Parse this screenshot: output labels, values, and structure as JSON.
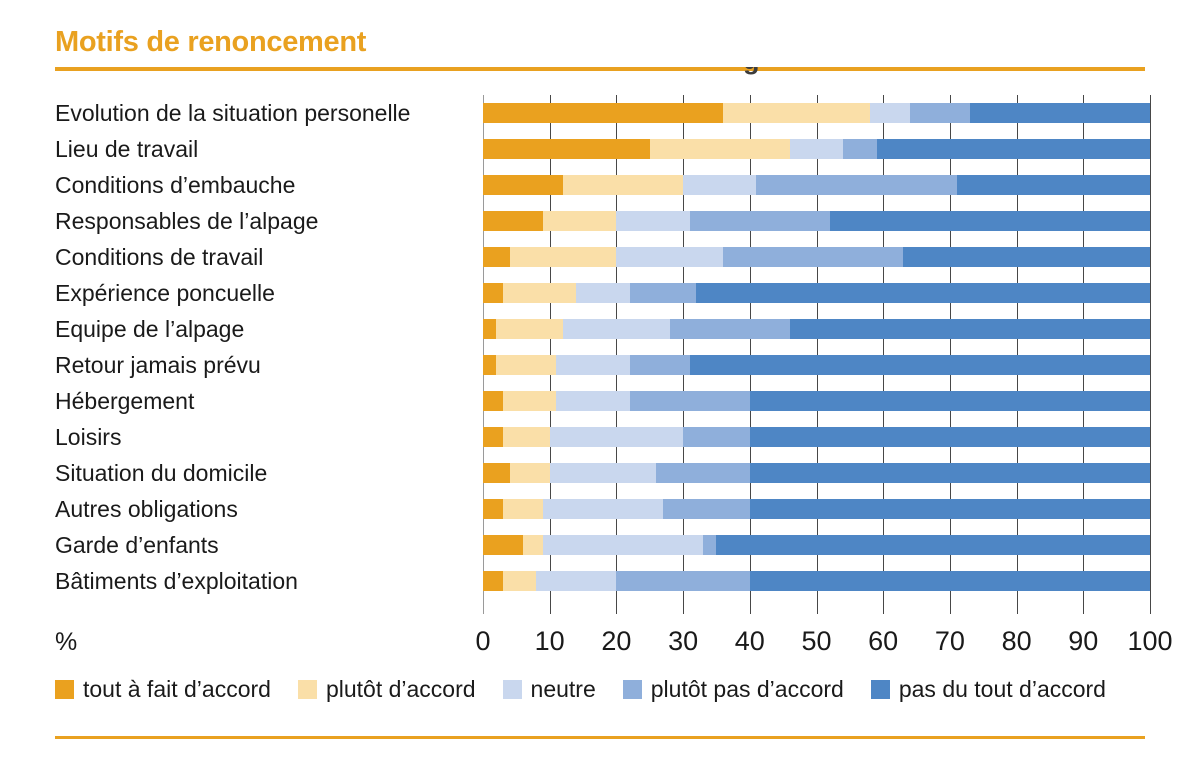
{
  "title": "Motifs de renoncement",
  "accent_color": "#e9a120",
  "artifact": {
    "clipped_glyph": "g"
  },
  "chart_data": {
    "type": "bar",
    "stacked": true,
    "orientation": "horizontal",
    "title": "Motifs de renoncement",
    "unit_label": "%",
    "xlim": [
      0,
      100
    ],
    "x_ticks": [
      0,
      10,
      20,
      30,
      40,
      50,
      60,
      70,
      80,
      90,
      100
    ],
    "grid": true,
    "legend_position": "bottom",
    "categories": [
      "Evolution de la situation personelle",
      "Lieu de travail",
      "Conditions d’embauche",
      "Responsables de l’alpage",
      "Conditions de travail",
      "Expérience poncuelle",
      "Equipe de l’alpage",
      "Retour jamais prévu",
      "Hébergement",
      "Loisirs",
      "Situation du domicile",
      "Autres obligations",
      "Garde d’enfants",
      "Bâtiments d’exploitation"
    ],
    "series": [
      {
        "name": "tout à fait d’accord",
        "color": "#eaa11f",
        "values": [
          36,
          25,
          12,
          9,
          4,
          3,
          2,
          2,
          3,
          3,
          4,
          3,
          6,
          3
        ]
      },
      {
        "name": "plutôt d’accord",
        "color": "#fadfa8",
        "values": [
          22,
          21,
          18,
          11,
          16,
          11,
          10,
          9,
          8,
          7,
          6,
          6,
          3,
          5
        ]
      },
      {
        "name": "neutre",
        "color": "#c9d7ee",
        "values": [
          6,
          8,
          11,
          11,
          16,
          8,
          16,
          11,
          11,
          20,
          16,
          18,
          24,
          12
        ]
      },
      {
        "name": "plutôt pas d’accord",
        "color": "#8fafdb",
        "values": [
          9,
          5,
          30,
          21,
          27,
          10,
          18,
          9,
          18,
          10,
          14,
          13,
          2,
          20
        ]
      },
      {
        "name": "pas du tout d’accord",
        "color": "#4e86c5",
        "values": [
          27,
          41,
          29,
          48,
          37,
          68,
          54,
          69,
          60,
          60,
          60,
          60,
          65,
          60
        ]
      }
    ]
  }
}
